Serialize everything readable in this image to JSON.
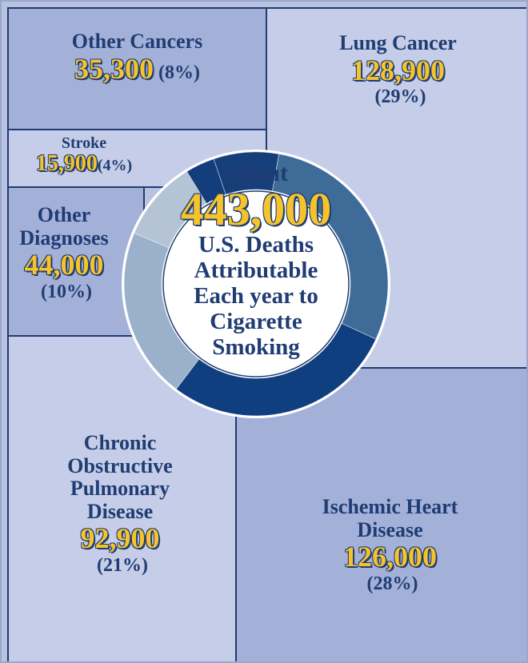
{
  "chart_data": {
    "type": "donut",
    "categories": [
      "Lung Cancer",
      "Ischemic Heart Disease",
      "Chronic Obstructive Pulmonary Disease",
      "Other Diagnoses",
      "Stroke",
      "Other Cancers"
    ],
    "values": [
      128900,
      126000,
      92900,
      44000,
      15900,
      35300
    ],
    "value_labels": [
      "128,900",
      "126,000",
      "92,900",
      "44,000",
      "15,900",
      "35,300"
    ],
    "percent_labels": [
      "(29%)",
      "(28%)",
      "(21%)",
      "(10%)",
      "(4%)",
      "(8%)"
    ],
    "colors": [
      "#3f6b99",
      "#0f3f7e",
      "#9bb0cb",
      "#b4c4d6",
      "#123f7c",
      "#163f7a"
    ],
    "center": {
      "lead": "About",
      "total": 443000,
      "total_label": "443,000",
      "caption": "U.S. Deaths Attributable Each year to Cigarette Smoking"
    }
  }
}
